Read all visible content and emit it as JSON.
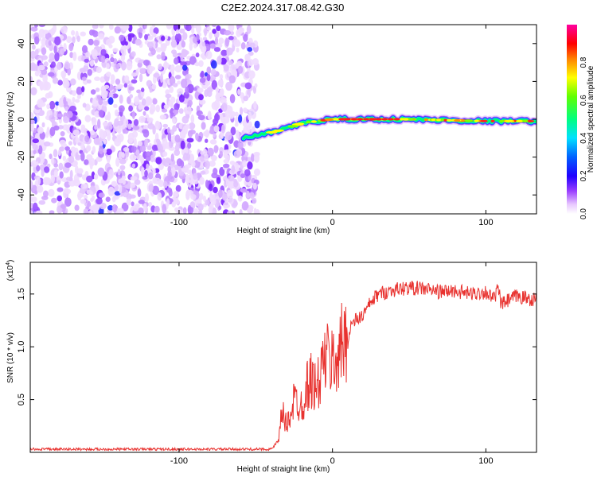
{
  "title": "C2E2.2024.317.08.42.G30",
  "chart_data": [
    {
      "type": "heatmap",
      "xlabel": "Height of straight line (km)",
      "ylabel": "Frequency (Hz)",
      "xlim": [
        -197,
        133
      ],
      "ylim": [
        -50,
        50
      ],
      "xticks": [
        -100,
        0,
        100
      ],
      "yticks": [
        -40,
        -20,
        0,
        20,
        40
      ],
      "colorbar": {
        "label": "Normalized spectral amplitude",
        "range": [
          0,
          1
        ],
        "ticks": [
          "0.0",
          "0.2",
          "0.4",
          "0.6",
          "0.8"
        ],
        "colormap": [
          "#ffffff",
          "#d9a6ff",
          "#7a00ff",
          "#0000ff",
          "#00c8ff",
          "#00ff66",
          "#ffff00",
          "#ff8000",
          "#ff0000",
          "#ff00ff"
        ]
      },
      "noise_region_x": [
        -197,
        -52
      ],
      "signal_track": [
        {
          "x": -58,
          "y": -10
        },
        {
          "x": -45,
          "y": -8
        },
        {
          "x": -30,
          "y": -5
        },
        {
          "x": -20,
          "y": -2
        },
        {
          "x": -10,
          "y": -1
        },
        {
          "x": 0,
          "y": 0
        },
        {
          "x": 20,
          "y": 0
        },
        {
          "x": 50,
          "y": 0
        },
        {
          "x": 100,
          "y": -1
        },
        {
          "x": 133,
          "y": -1
        }
      ]
    },
    {
      "type": "line",
      "xlabel": "Height of straight line (km)",
      "ylabel": "SNR (10 * v/v)",
      "yscale_label": "(x10",
      "yscale_exp": "4",
      "yscale_close": ")",
      "xlim": [
        -197,
        133
      ],
      "ylim": [
        0,
        1.8
      ],
      "xticks": [
        -100,
        0,
        100
      ],
      "yticks": [
        "0.5",
        "1.0",
        "1.5"
      ],
      "color": "#e8322f",
      "series": [
        {
          "x": [
            -197,
            -150,
            -100,
            -60,
            -40,
            -35,
            -33,
            -30,
            -25,
            -20,
            -15,
            -10,
            -5,
            0,
            5,
            8,
            10,
            12,
            15,
            20,
            25,
            30,
            40,
            50,
            60,
            70,
            80,
            90,
            100,
            105,
            108,
            110,
            120,
            130,
            133
          ],
          "values": [
            0.03,
            0.03,
            0.03,
            0.03,
            0.03,
            0.1,
            0.4,
            0.25,
            0.5,
            0.45,
            0.7,
            0.6,
            0.9,
            0.85,
            0.95,
            1.1,
            1.05,
            1.2,
            1.25,
            1.3,
            1.42,
            1.5,
            1.54,
            1.56,
            1.55,
            1.52,
            1.53,
            1.5,
            1.52,
            1.45,
            1.55,
            1.4,
            1.48,
            1.45,
            1.45
          ]
        }
      ]
    }
  ]
}
